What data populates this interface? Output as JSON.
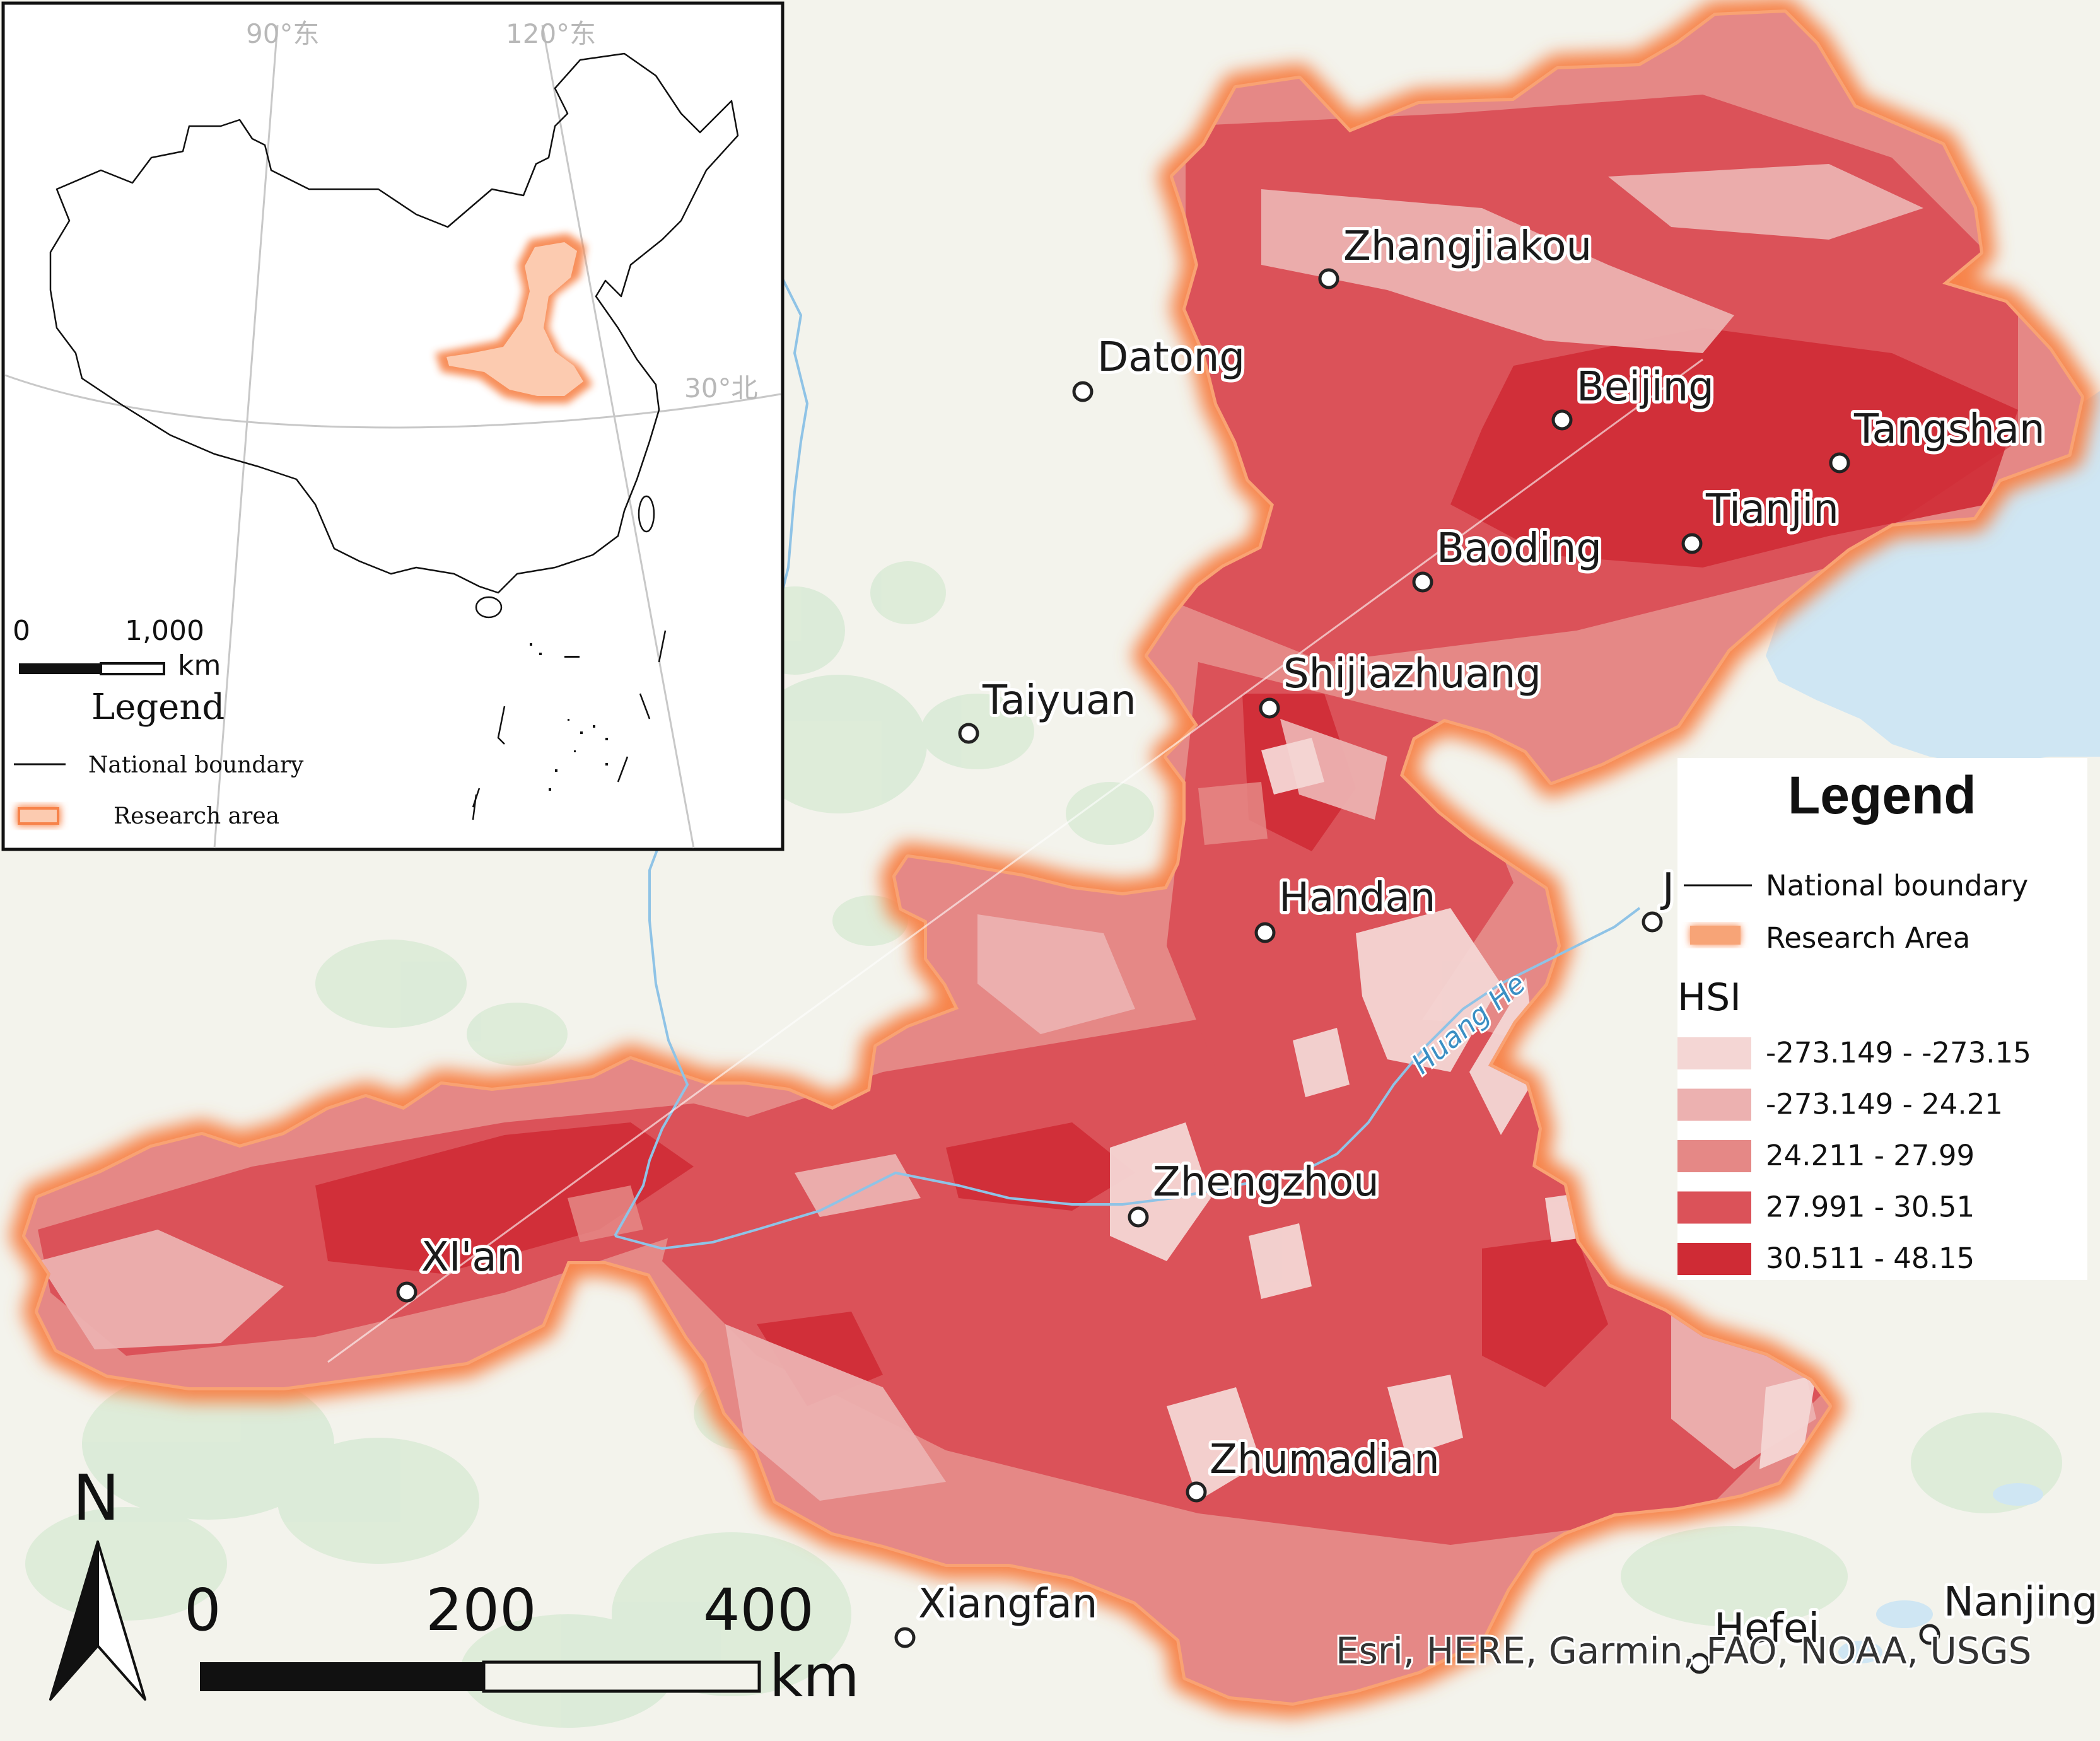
{
  "map": {
    "colors": {
      "land": "#f3f3ec",
      "sea": "#cfe6f3",
      "forest": "#d9ead6",
      "halo": "#f7834a",
      "cls1": "#f4d6d4",
      "cls2": "#ecb1b0",
      "cls3": "#e58886",
      "cls4": "#db5259",
      "cls5": "#cf2b35"
    },
    "cities": [
      {
        "id": "zhangjiakou",
        "label": "Zhangjiakou"
      },
      {
        "id": "datong",
        "label": "Datong"
      },
      {
        "id": "beijing",
        "label": "Beijing"
      },
      {
        "id": "tangshan",
        "label": "Tangshan"
      },
      {
        "id": "tianjin",
        "label": "Tianjin"
      },
      {
        "id": "baoding",
        "label": "Baoding"
      },
      {
        "id": "taiyuan",
        "label": "Taiyuan"
      },
      {
        "id": "shijiazhuang",
        "label": "Shijiazhuang"
      },
      {
        "id": "handan",
        "label": "Handan"
      },
      {
        "id": "jinan",
        "label": "J"
      },
      {
        "id": "zhengzhou",
        "label": "Zhengzhou"
      },
      {
        "id": "xian",
        "label": "XI'an"
      },
      {
        "id": "zhumadian",
        "label": "Zhumadian"
      },
      {
        "id": "xiangfan",
        "label": "Xiangfan"
      },
      {
        "id": "hefei",
        "label": "Hefei"
      },
      {
        "id": "nanjing",
        "label": "Nanjing"
      }
    ],
    "river_label": "Huang He",
    "north_label": "N",
    "scale_bar": {
      "ticks": [
        "0",
        "200",
        "400"
      ],
      "unit": "km"
    },
    "attribution": "Esri, HERE, Garmin, FAO, NOAA, USGS"
  },
  "legend": {
    "title": "Legend",
    "boundary_label": "National boundary",
    "research_label": "Research Area",
    "hsi_title": "HSI",
    "classes": [
      {
        "label": "-273.149 - -273.15",
        "color": "#f4d6d4"
      },
      {
        "label": "-273.149 - 24.21",
        "color": "#ecb1b0"
      },
      {
        "label": "24.211 - 27.99",
        "color": "#e58886"
      },
      {
        "label": "27.991 - 30.51",
        "color": "#db5259"
      },
      {
        "label": "30.511 - 48.15",
        "color": "#cf2b35"
      }
    ]
  },
  "inset": {
    "graticule": {
      "lon1": "90°东",
      "lon2": "120°东",
      "lat1": "30°北"
    },
    "scale": {
      "tick0": "0",
      "tick1": "1,000",
      "unit": "km"
    },
    "legend_title": "Legend",
    "boundary_label": "National boundary",
    "research_label": "Research area"
  }
}
